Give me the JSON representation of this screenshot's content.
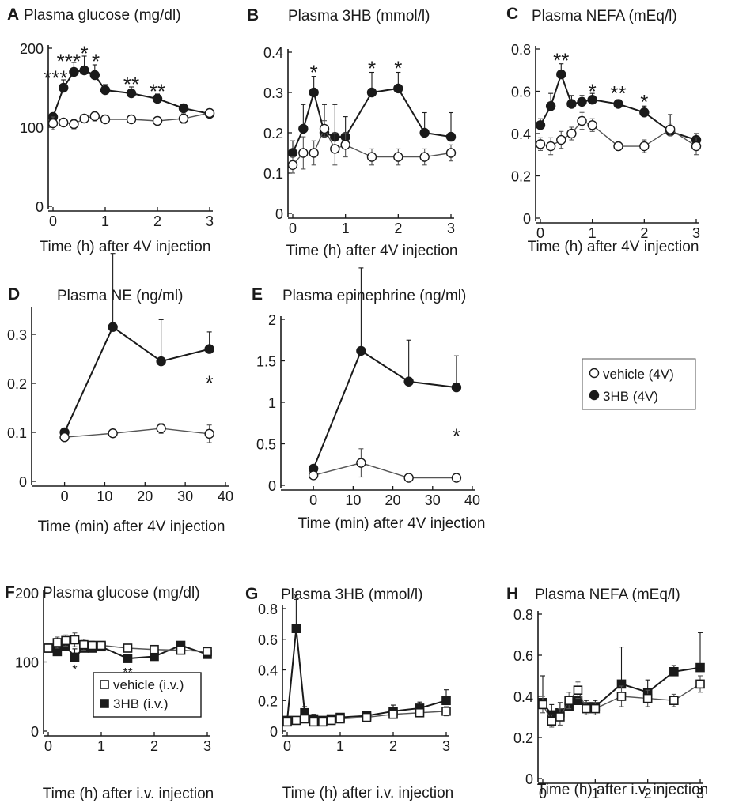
{
  "legends": {
    "fourV": {
      "vehicle": "vehicle (4V)",
      "hb": "3HB (4V)"
    },
    "iv": {
      "vehicle": "vehicle (i.v.)",
      "hb": "3HB (i.v.)"
    }
  },
  "chart_data": [
    {
      "panel": "A",
      "type": "line",
      "title": "Plasma glucose (mg/dl)",
      "xlabel": "Time (h) after 4V injection",
      "ylabel": "",
      "xlim": [
        0,
        3
      ],
      "ylim": [
        0,
        200
      ],
      "xticks": [
        "0",
        "1",
        "2",
        "3"
      ],
      "yticks": [
        "0",
        "100",
        "200"
      ],
      "marker": "circle",
      "legend_ref": "fourV",
      "series": [
        {
          "role": "vehicle",
          "x": [
            0,
            0.2,
            0.4,
            0.6,
            0.8,
            1,
            1.5,
            2,
            2.5,
            3
          ],
          "y": [
            105,
            106,
            104,
            111,
            114,
            110,
            110,
            108,
            111,
            118
          ],
          "err": [
            8,
            5,
            6,
            5,
            6,
            4,
            4,
            5,
            6,
            5
          ]
        },
        {
          "role": "hb",
          "x": [
            0,
            0.2,
            0.4,
            0.6,
            0.8,
            1,
            1.5,
            2,
            2.5,
            3
          ],
          "y": [
            113,
            150,
            170,
            172,
            166,
            147,
            143,
            136,
            124,
            117
          ],
          "err": [
            5,
            10,
            12,
            18,
            13,
            7,
            8,
            6,
            5,
            6
          ]
        }
      ],
      "annotations": [
        {
          "x": 0.05,
          "y": 165,
          "text": "***"
        },
        {
          "x": 0.3,
          "y": 186,
          "text": "***"
        },
        {
          "x": 0.6,
          "y": 196,
          "text": "*"
        },
        {
          "x": 0.82,
          "y": 186,
          "text": "*"
        },
        {
          "x": 1.5,
          "y": 157,
          "text": "**"
        },
        {
          "x": 2,
          "y": 148,
          "text": "**"
        }
      ]
    },
    {
      "panel": "B",
      "type": "line",
      "title": "Plasma 3HB (mmol/l)",
      "xlabel": "Time (h) after 4V injection",
      "ylabel": "",
      "xlim": [
        0,
        3
      ],
      "ylim": [
        0,
        0.4
      ],
      "xticks": [
        "0",
        "1",
        "2",
        "3"
      ],
      "yticks": [
        "0",
        "0.1",
        "0.2",
        "0.3",
        "0.4"
      ],
      "marker": "circle",
      "legend_ref": "fourV",
      "series": [
        {
          "role": "vehicle",
          "x": [
            0,
            0.2,
            0.4,
            0.6,
            0.8,
            1,
            1.5,
            2,
            2.5,
            3
          ],
          "y": [
            0.12,
            0.15,
            0.15,
            0.21,
            0.16,
            0.17,
            0.14,
            0.14,
            0.14,
            0.15
          ],
          "err": [
            0.02,
            0.04,
            0.03,
            0.02,
            0.04,
            0.03,
            0.02,
            0.02,
            0.02,
            0.02
          ]
        },
        {
          "role": "hb",
          "x": [
            0,
            0.2,
            0.4,
            0.6,
            0.8,
            1,
            1.5,
            2,
            2.5,
            3
          ],
          "y": [
            0.15,
            0.21,
            0.3,
            0.2,
            0.19,
            0.19,
            0.3,
            0.31,
            0.2,
            0.19
          ],
          "err": [
            0.03,
            0.06,
            0.04,
            0.07,
            0.08,
            0.05,
            0.05,
            0.04,
            0.05,
            0.06
          ]
        }
      ],
      "annotations": [
        {
          "x": 0.4,
          "y": 0.355,
          "text": "*"
        },
        {
          "x": 1.5,
          "y": 0.365,
          "text": "*"
        },
        {
          "x": 2,
          "y": 0.365,
          "text": "*"
        }
      ]
    },
    {
      "panel": "C",
      "type": "line",
      "title": "Plasma NEFA (mEq/l)",
      "xlabel": "Time (h) after 4V injection",
      "ylabel": "",
      "xlim": [
        0,
        3
      ],
      "ylim": [
        0,
        0.8
      ],
      "xticks": [
        "0",
        "1",
        "2",
        "3"
      ],
      "yticks": [
        "0",
        "0.2",
        "0.4",
        "0.6",
        "0.8"
      ],
      "marker": "circle",
      "legend_ref": "fourV",
      "series": [
        {
          "role": "vehicle",
          "x": [
            0,
            0.2,
            0.4,
            0.6,
            0.8,
            1,
            1.5,
            2,
            2.5,
            3
          ],
          "y": [
            0.35,
            0.34,
            0.37,
            0.4,
            0.46,
            0.44,
            0.34,
            0.34,
            0.42,
            0.34
          ],
          "err": [
            0.03,
            0.04,
            0.04,
            0.03,
            0.04,
            0.03,
            0.02,
            0.03,
            0.03,
            0.04
          ]
        },
        {
          "role": "hb",
          "x": [
            0,
            0.2,
            0.4,
            0.6,
            0.8,
            1,
            1.5,
            2,
            2.5,
            3
          ],
          "y": [
            0.44,
            0.53,
            0.68,
            0.54,
            0.55,
            0.56,
            0.54,
            0.5,
            0.41,
            0.37
          ],
          "err": [
            0.03,
            0.06,
            0.05,
            0.04,
            0.03,
            0.03,
            0.02,
            0.03,
            0.08,
            0.03
          ]
        }
      ],
      "annotations": [
        {
          "x": 0.4,
          "y": 0.755,
          "text": "**"
        },
        {
          "x": 1,
          "y": 0.61,
          "text": "*"
        },
        {
          "x": 1.5,
          "y": 0.6,
          "text": "**"
        },
        {
          "x": 2,
          "y": 0.56,
          "text": "*"
        }
      ]
    },
    {
      "panel": "D",
      "type": "line",
      "title": "Plasma NE (ng/ml)",
      "xlabel": "Time (min) after 4V injection",
      "ylabel": "",
      "xlim": [
        -7,
        40
      ],
      "ylim": [
        0,
        0.35
      ],
      "xticks": [
        "0",
        "10",
        "20",
        "30",
        "40"
      ],
      "yticks": [
        "0",
        "0.1",
        "0.2",
        "0.3"
      ],
      "marker": "circle",
      "legend_ref": "fourV",
      "series": [
        {
          "role": "vehicle",
          "x": [
            0,
            12,
            24,
            36
          ],
          "y": [
            0.09,
            0.098,
            0.108,
            0.097
          ],
          "err": [
            0.008,
            0.006,
            0.01,
            0.018
          ]
        },
        {
          "role": "hb",
          "x": [
            0,
            12,
            24,
            36
          ],
          "y": [
            0.1,
            0.315,
            0.245,
            0.27
          ],
          "err": [
            0.008,
            0.15,
            0.085,
            0.035
          ]
        }
      ],
      "annotations": [
        {
          "x": 36,
          "y": 0.205,
          "text": "*"
        }
      ]
    },
    {
      "panel": "E",
      "type": "line",
      "title": "Plasma  epinephrine (ng/ml)",
      "xlabel": "Time (min) after 4V injection",
      "ylabel": "",
      "xlim": [
        -7,
        40
      ],
      "ylim": [
        0,
        2
      ],
      "xticks": [
        "0",
        "10",
        "20",
        "30",
        "40"
      ],
      "yticks": [
        "0",
        "0.5",
        "1",
        "1.5",
        "2"
      ],
      "marker": "circle",
      "legend_ref": "fourV",
      "series": [
        {
          "role": "vehicle",
          "x": [
            0,
            12,
            24,
            36
          ],
          "y": [
            0.12,
            0.27,
            0.09,
            0.09
          ],
          "err": [
            0.03,
            0.17,
            0.02,
            0.02
          ]
        },
        {
          "role": "hb",
          "x": [
            0,
            12,
            24,
            36
          ],
          "y": [
            0.2,
            1.62,
            1.25,
            1.18
          ],
          "err": [
            0.04,
            1.0,
            0.5,
            0.38
          ]
        }
      ],
      "annotations": [
        {
          "x": 36,
          "y": 0.62,
          "text": "*"
        }
      ]
    },
    {
      "panel": "F",
      "type": "line",
      "title": "Plasma glucose (mg/dl)",
      "xlabel": "Time (h) after i.v. injection",
      "ylabel": "",
      "xlim": [
        0,
        3
      ],
      "ylim": [
        0,
        200
      ],
      "xticks": [
        "0",
        "1",
        "2",
        "3"
      ],
      "yticks": [
        "0",
        "100",
        "200"
      ],
      "marker": "square",
      "legend_ref": "iv",
      "series": [
        {
          "role": "vehicle",
          "x": [
            0,
            0.17,
            0.33,
            0.5,
            0.67,
            0.83,
            1,
            1.5,
            2,
            2.5,
            3
          ],
          "y": [
            120,
            128,
            131,
            132,
            125,
            124,
            124,
            120,
            118,
            117,
            115
          ],
          "err": [
            6,
            8,
            8,
            10,
            8,
            6,
            5,
            4,
            4,
            4,
            4
          ]
        },
        {
          "role": "hb",
          "x": [
            0,
            0.17,
            0.33,
            0.5,
            0.67,
            0.83,
            1,
            1.5,
            2,
            2.5,
            3
          ],
          "y": [
            120,
            115,
            123,
            107,
            120,
            120,
            122,
            105,
            108,
            124,
            111
          ],
          "err": [
            4,
            6,
            10,
            12,
            6,
            5,
            4,
            4,
            4,
            5,
            4
          ]
        }
      ],
      "annotations": [
        {
          "x": 0.5,
          "y": 91,
          "text": "*"
        },
        {
          "x": 1.5,
          "y": 87,
          "text": "**"
        }
      ]
    },
    {
      "panel": "G",
      "type": "line",
      "title": "Plasma 3HB (mmol/l)",
      "xlabel": "Time (h) after i.v. injection",
      "ylabel": "",
      "xlim": [
        0,
        3
      ],
      "ylim": [
        0,
        0.8
      ],
      "xticks": [
        "0",
        "1",
        "2",
        "3"
      ],
      "yticks": [
        "0",
        "0.2",
        "0.4",
        "0.6",
        "0.8"
      ],
      "marker": "square",
      "legend_ref": "iv",
      "series": [
        {
          "role": "vehicle",
          "x": [
            0,
            0.17,
            0.33,
            0.5,
            0.67,
            0.83,
            1,
            1.5,
            2,
            2.5,
            3
          ],
          "y": [
            0.06,
            0.07,
            0.08,
            0.06,
            0.06,
            0.07,
            0.08,
            0.09,
            0.11,
            0.12,
            0.13
          ],
          "err": [
            0.01,
            0.01,
            0.02,
            0.01,
            0.01,
            0.01,
            0.02,
            0.02,
            0.02,
            0.02,
            0.03
          ]
        },
        {
          "role": "hb",
          "x": [
            0,
            0.17,
            0.33,
            0.5,
            0.67,
            0.83,
            1,
            1.5,
            2,
            2.5,
            3
          ],
          "y": [
            0.07,
            0.67,
            0.12,
            0.08,
            0.07,
            0.08,
            0.09,
            0.1,
            0.13,
            0.15,
            0.2
          ],
          "err": [
            0.02,
            0.19,
            0.04,
            0.03,
            0.02,
            0.02,
            0.02,
            0.03,
            0.04,
            0.04,
            0.07
          ]
        }
      ],
      "annotations": [
        {
          "x": 0.17,
          "y": 0.88,
          "text": "*"
        }
      ]
    },
    {
      "panel": "H",
      "type": "line",
      "title": "Plasma NEFA (mEq/l)",
      "xlabel": "Time (h) after i.v. injection",
      "ylabel": "",
      "xlim": [
        0,
        3
      ],
      "ylim": [
        0,
        0.8
      ],
      "xticks": [
        "0",
        "1",
        "2",
        "3"
      ],
      "yticks": [
        "0",
        "0.2",
        "0.4",
        "0.6",
        "0.8"
      ],
      "marker": "square",
      "legend_ref": "iv",
      "series": [
        {
          "role": "vehicle",
          "x": [
            0,
            0.17,
            0.33,
            0.5,
            0.67,
            0.83,
            1,
            1.5,
            2,
            2.5,
            3
          ],
          "y": [
            0.36,
            0.28,
            0.3,
            0.38,
            0.43,
            0.34,
            0.34,
            0.4,
            0.39,
            0.38,
            0.46
          ],
          "err": [
            0.04,
            0.03,
            0.04,
            0.04,
            0.04,
            0.03,
            0.03,
            0.05,
            0.04,
            0.03,
            0.04
          ]
        },
        {
          "role": "hb",
          "x": [
            0,
            0.17,
            0.33,
            0.5,
            0.67,
            0.83,
            1,
            1.5,
            2,
            2.5,
            3
          ],
          "y": [
            0.37,
            0.31,
            0.32,
            0.35,
            0.38,
            0.35,
            0.35,
            0.46,
            0.42,
            0.52,
            0.54
          ],
          "err": [
            0.13,
            0.05,
            0.05,
            0.05,
            0.06,
            0.03,
            0.03,
            0.18,
            0.06,
            0.03,
            0.17
          ]
        }
      ],
      "annotations": []
    }
  ]
}
